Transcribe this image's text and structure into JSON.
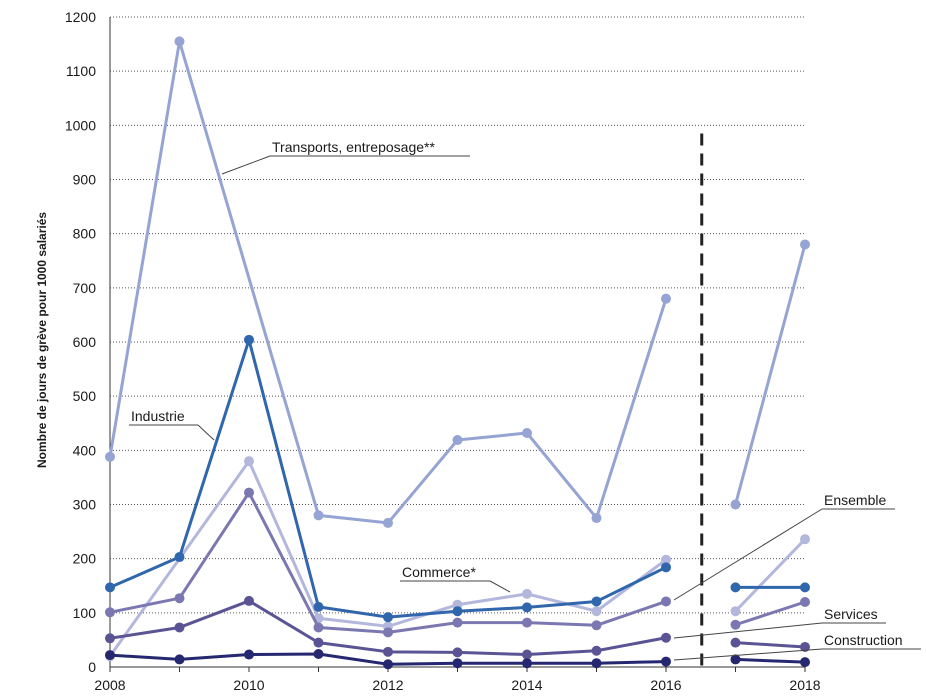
{
  "chart_data": {
    "type": "line",
    "ylabel": "Nombre de jours de grève pour 1000 salariés",
    "xlabel": "",
    "x": [
      2008,
      2009,
      2010,
      2011,
      2012,
      2013,
      2014,
      2015,
      2016,
      2017,
      2018
    ],
    "x_tick_labels": [
      "2008",
      "2010",
      "2012",
      "2014",
      "2016",
      "2018"
    ],
    "y_tick_labels": [
      "0",
      "100",
      "200",
      "300",
      "400",
      "500",
      "600",
      "700",
      "800",
      "900",
      "1000",
      "1100",
      "1200"
    ],
    "xlim": [
      2008,
      2018
    ],
    "ylim": [
      0,
      1200
    ],
    "grid": "horizontal dotted",
    "break_marker": "dashed vertical line between 2016 and 2017",
    "series": [
      {
        "name": "Transports, entreposage**",
        "color": "#95a4d2",
        "values": [
          388,
          1155,
          null,
          280,
          266,
          419,
          432,
          275,
          680,
          300,
          780
        ]
      },
      {
        "name": "Commerce*",
        "color": "#b3b7dc",
        "values": [
          20,
          null,
          380,
          90,
          75,
          115,
          135,
          103,
          198,
          103,
          236
        ]
      },
      {
        "name": "Industrie",
        "color": "#2f66ac",
        "values": [
          147,
          203,
          604,
          111,
          92,
          103,
          110,
          121,
          184,
          147,
          147
        ]
      },
      {
        "name": "Ensemble",
        "color": "#7b77b1",
        "values": [
          101,
          127,
          322,
          73,
          64,
          82,
          82,
          77,
          121,
          78,
          120
        ]
      },
      {
        "name": "Services",
        "color": "#5a5494",
        "values": [
          53,
          73,
          122,
          45,
          28,
          27,
          23,
          30,
          54,
          45,
          37
        ]
      },
      {
        "name": "Construction",
        "color": "#252870",
        "values": [
          22,
          14,
          23,
          24,
          5,
          7,
          7,
          7,
          10,
          14,
          9
        ]
      }
    ]
  }
}
